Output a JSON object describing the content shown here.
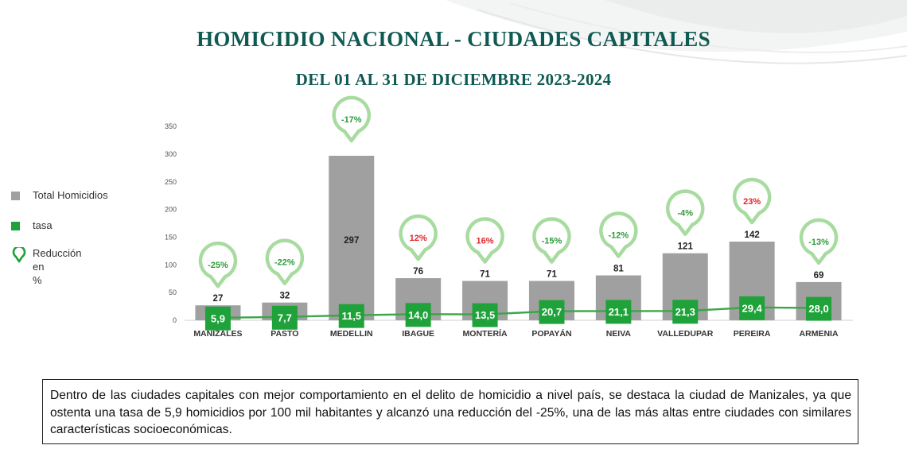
{
  "header": {
    "title": "HOMICIDIO NACIONAL - CIUDADES CAPITALES",
    "subtitle": "DEL 01 AL 31 DE DICIEMBRE 2023-2024"
  },
  "legend": {
    "items": [
      {
        "label": "Total Homicidios",
        "color": "#a0a0a0",
        "marker": "square"
      },
      {
        "label": "tasa",
        "color": "#1fa23a",
        "marker": "square"
      },
      {
        "label": "Reducción en\n%",
        "color": "#1fa23a",
        "marker": "pin"
      }
    ]
  },
  "chart_data": {
    "type": "bar",
    "categories": [
      "MANIZALES",
      "PASTO",
      "MEDELLIN",
      "IBAGUE",
      "MONTERÍA",
      "POPAYÁN",
      "NEIVA",
      "VALLEDUPAR",
      "PEREIRA",
      "ARMENIA"
    ],
    "series": [
      {
        "name": "Total Homicidios",
        "values": [
          27,
          32,
          297,
          76,
          71,
          71,
          81,
          121,
          142,
          69
        ],
        "labels": [
          "27",
          "32",
          "297",
          "76",
          "71",
          "71",
          "81",
          "121",
          "142",
          "69"
        ],
        "color": "#a0a0a0"
      },
      {
        "name": "tasa",
        "values": [
          5.9,
          7.7,
          11.5,
          14.0,
          13.5,
          20.7,
          21.1,
          21.3,
          29.4,
          28.0
        ],
        "labels": [
          "5,9",
          "7,7",
          "11,5",
          "14,0",
          "13,5",
          "20,7",
          "21,1",
          "21,3",
          "29,4",
          "28,0"
        ],
        "color": "#1fa23a"
      },
      {
        "name": "Reducción en %",
        "values": [
          -25,
          -22,
          -17,
          12,
          16,
          -15,
          -12,
          -4,
          23,
          -13
        ],
        "labels": [
          "-25%",
          "-22%",
          "-17%",
          "12%",
          "16%",
          "-15%",
          "-12%",
          "-4%",
          "23%",
          "-13%"
        ],
        "colors": {
          "reduction": "#2e9a3a",
          "increase": "#e0262a"
        }
      }
    ],
    "yticks": [
      "0",
      "50",
      "100",
      "150",
      "200",
      "250",
      "300",
      "350"
    ],
    "ylim": [
      0,
      350
    ],
    "grid": false,
    "legend_position": "left"
  },
  "note": {
    "text": "Dentro de las ciudades capitales con mejor comportamiento en el delito de homicidio a nivel país, se destaca la ciudad de Manizales, ya que ostenta una tasa de 5,9 homicidios por 100 mil habitantes y alcanzó una reducción del -25%, una de las más altas entre ciudades con similares  características socioeconómicas."
  }
}
